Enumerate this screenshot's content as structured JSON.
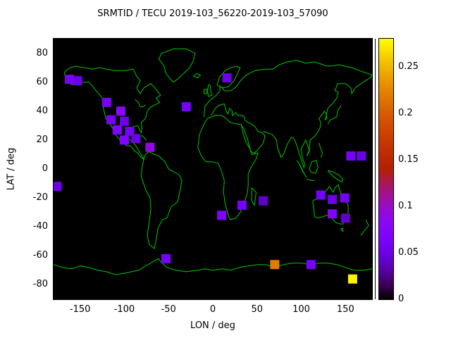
{
  "title": "SRMTID / TECU 2019-103_56220-2019-103_57090",
  "axes": {
    "xlabel": "LON / deg",
    "ylabel": "LAT / deg",
    "x_ticks": [
      -150,
      -100,
      -50,
      0,
      50,
      100,
      150
    ],
    "y_ticks": [
      80,
      60,
      40,
      20,
      0,
      -20,
      -40,
      -60,
      -80
    ],
    "xlim": [
      -180,
      180
    ],
    "ylim": [
      -90,
      90
    ]
  },
  "map": {
    "background": "#000000",
    "coastline_color": "#00c800"
  },
  "chart_data": {
    "type": "heatmap",
    "title": "SRMTID / TECU 2019-103_56220-2019-103_57090",
    "xlabel": "LON / deg",
    "ylabel": "LAT / deg",
    "xlim": [
      -180,
      180
    ],
    "ylim": [
      -90,
      90
    ],
    "grid": false,
    "colorbar": {
      "min": 0,
      "max": 0.28,
      "ticks": [
        0,
        0.05,
        0.1,
        0.15,
        0.2,
        0.25
      ],
      "palette": "gnuplot black-violet-red-orange-yellow",
      "position": "right"
    },
    "units": "TECU",
    "points": [
      {
        "lon": -162,
        "lat": 62,
        "value": 0.06
      },
      {
        "lon": -153,
        "lat": 61,
        "value": 0.05
      },
      {
        "lon": -120,
        "lat": 46,
        "value": 0.06
      },
      {
        "lon": -104,
        "lat": 40,
        "value": 0.08
      },
      {
        "lon": -115,
        "lat": 34,
        "value": 0.06
      },
      {
        "lon": -100,
        "lat": 33,
        "value": 0.05
      },
      {
        "lon": -108,
        "lat": 27,
        "value": 0.07
      },
      {
        "lon": -94,
        "lat": 26,
        "value": 0.06
      },
      {
        "lon": -100,
        "lat": 20,
        "value": 0.07
      },
      {
        "lon": -87,
        "lat": 21,
        "value": 0.05
      },
      {
        "lon": -71,
        "lat": 15,
        "value": 0.09
      },
      {
        "lon": -30,
        "lat": 43,
        "value": 0.06
      },
      {
        "lon": 16,
        "lat": 63,
        "value": 0.05
      },
      {
        "lon": -176,
        "lat": -12,
        "value": 0.05
      },
      {
        "lon": 10,
        "lat": -32,
        "value": 0.07
      },
      {
        "lon": 33,
        "lat": -25,
        "value": 0.06
      },
      {
        "lon": 57,
        "lat": -22,
        "value": 0.04
      },
      {
        "lon": 122,
        "lat": -18,
        "value": 0.06
      },
      {
        "lon": 135,
        "lat": -21,
        "value": 0.05
      },
      {
        "lon": 149,
        "lat": -20,
        "value": 0.06
      },
      {
        "lon": 135,
        "lat": -31,
        "value": 0.07
      },
      {
        "lon": 150,
        "lat": -34,
        "value": 0.04
      },
      {
        "lon": 156,
        "lat": 9,
        "value": 0.06
      },
      {
        "lon": 168,
        "lat": 9,
        "value": 0.05
      },
      {
        "lon": -53,
        "lat": -62,
        "value": 0.06
      },
      {
        "lon": 70,
        "lat": -66,
        "value": 0.22
      },
      {
        "lon": 111,
        "lat": -66,
        "value": 0.06
      },
      {
        "lon": 158,
        "lat": -76,
        "value": 0.275
      }
    ]
  }
}
